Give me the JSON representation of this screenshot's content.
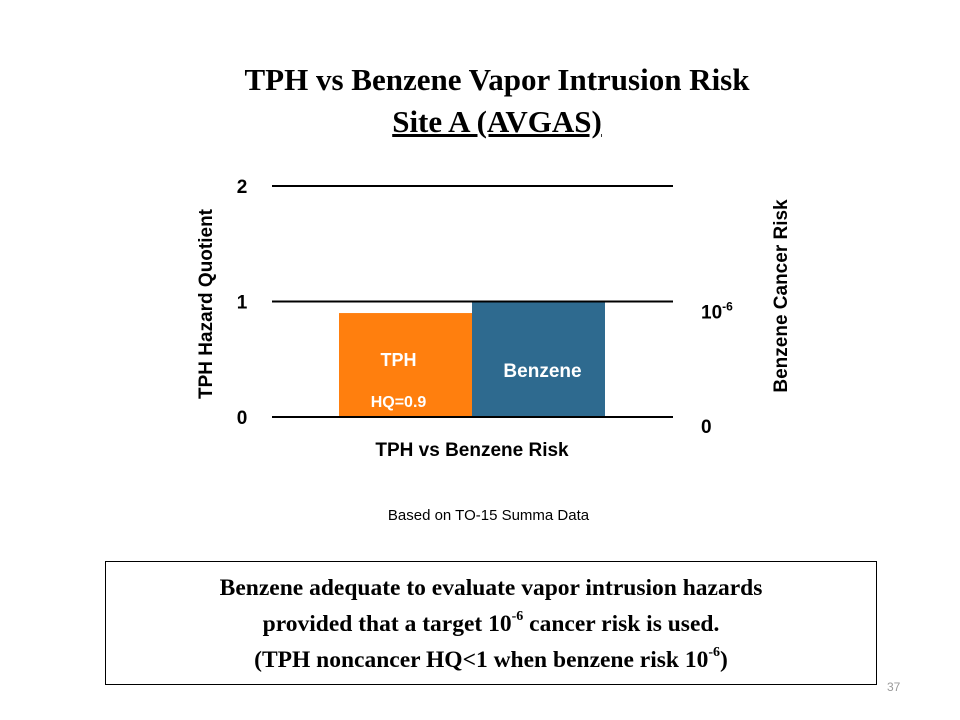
{
  "slide": {
    "title_line1": "TPH vs Benzene Vapor Intrusion Risk",
    "title_line2": "Site A (AVGAS)",
    "caption": "Based on TO-15 Summa Data",
    "note": {
      "line1": "Benzene adequate to evaluate vapor intrusion hazards",
      "line2_pre": "provided that a target 10",
      "line2_sup": "-6",
      "line2_post": " cancer risk is used.",
      "line3_pre": "(TPH noncancer HQ<1 when benzene risk 10",
      "line3_sup": "-6",
      "line3_post": ")"
    },
    "page_number": "37"
  },
  "chart_data": {
    "type": "bar",
    "title": "",
    "xlabel": "TPH vs Benzene Risk",
    "ylabel_left": "TPH Hazard Quotient",
    "ylabel_right": "Benzene Cancer Risk",
    "ylim": [
      0,
      2
    ],
    "yticks_left": [
      "0",
      "1",
      "2"
    ],
    "yticks_right": [
      {
        "value": 0,
        "label_base": "0",
        "label_sup": ""
      },
      {
        "value": 1,
        "label_base": "10",
        "label_sup": "-6"
      }
    ],
    "grid": true,
    "bars": [
      {
        "name": "TPH",
        "value_label": "HQ=0.9",
        "value": 0.9,
        "color": "#ff7f0e"
      },
      {
        "name": "Benzene",
        "value_label": "",
        "value": 1.0,
        "color": "#2e6a8f"
      }
    ]
  }
}
